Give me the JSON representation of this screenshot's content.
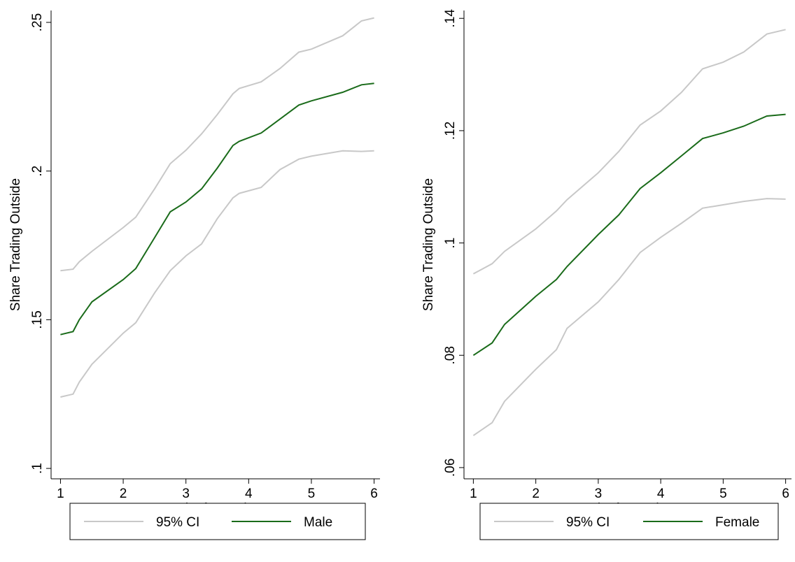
{
  "chart_data": [
    {
      "type": "line",
      "ylabel": "Share Trading Outside",
      "xlabel": "Week of experiment",
      "x": [
        1,
        1.2,
        1.3,
        1.5,
        2,
        2.2,
        2.5,
        2.75,
        3,
        3.25,
        3.5,
        3.75,
        3.85,
        4.2,
        4.5,
        4.8,
        5,
        5.5,
        5.8,
        6
      ],
      "series": [
        {
          "name": "95% CI",
          "color": "#c8c8c8",
          "upper": [
            0.1665,
            0.167,
            0.1695,
            0.173,
            0.181,
            0.1845,
            0.194,
            0.2025,
            0.207,
            0.2125,
            0.219,
            0.226,
            0.2278,
            0.23,
            0.2345,
            0.24,
            0.241,
            0.2455,
            0.2505,
            0.2515
          ],
          "lower": [
            0.124,
            0.125,
            0.129,
            0.135,
            0.1455,
            0.149,
            0.159,
            0.1665,
            0.1715,
            0.1755,
            0.184,
            0.191,
            0.1925,
            0.1945,
            0.2005,
            0.204,
            0.205,
            0.2068,
            0.2066,
            0.2068
          ]
        },
        {
          "name": "Male",
          "color": "#1a6b1a",
          "values": [
            0.145,
            0.146,
            0.15,
            0.156,
            0.1635,
            0.1672,
            0.1776,
            0.1863,
            0.1896,
            0.194,
            0.201,
            0.2086,
            0.21,
            0.2128,
            0.2175,
            0.2222,
            0.2236,
            0.2265,
            0.229,
            0.2295
          ]
        }
      ],
      "xlim": [
        0.85,
        6.15
      ],
      "xticks": [
        1,
        2,
        3,
        4,
        5,
        6
      ],
      "ylim": [
        0.0965,
        0.254
      ],
      "yticks": [
        {
          "value": 0.1,
          "label": ".1"
        },
        {
          "value": 0.15,
          "label": ".15"
        },
        {
          "value": 0.2,
          "label": ".2"
        },
        {
          "value": 0.25,
          "label": ".25"
        }
      ],
      "legend": "bottom"
    },
    {
      "type": "line",
      "ylabel": "Share Trading Outside",
      "xlabel": "Week of experiment",
      "x": [
        1,
        1.3,
        1.5,
        2,
        2.33,
        2.5,
        3,
        3.33,
        3.67,
        4,
        4.33,
        4.67,
        5,
        5.33,
        5.7,
        6
      ],
      "series": [
        {
          "name": "95% CI",
          "color": "#c8c8c8",
          "upper": [
            0.0945,
            0.0963,
            0.0985,
            0.1025,
            0.1057,
            0.1077,
            0.1125,
            0.1163,
            0.121,
            0.1235,
            0.1268,
            0.131,
            0.1322,
            0.134,
            0.1372,
            0.138
          ],
          "lower": [
            0.0657,
            0.068,
            0.0718,
            0.0775,
            0.081,
            0.0848,
            0.0895,
            0.0935,
            0.0983,
            0.101,
            0.1035,
            0.1062,
            0.1068,
            0.1074,
            0.1079,
            0.1078
          ]
        },
        {
          "name": "Female",
          "color": "#1a6b1a",
          "values": [
            0.08,
            0.0822,
            0.0855,
            0.0905,
            0.0935,
            0.0958,
            0.1015,
            0.105,
            0.1097,
            0.1125,
            0.1155,
            0.1186,
            0.1196,
            0.1208,
            0.1226,
            0.1229
          ]
        }
      ],
      "xlim": [
        0.85,
        6.15
      ],
      "xticks": [
        1,
        2,
        3,
        4,
        5,
        6
      ],
      "ylim": [
        0.058,
        0.1414
      ],
      "yticks": [
        {
          "value": 0.06,
          "label": ".06"
        },
        {
          "value": 0.08,
          "label": ".08"
        },
        {
          "value": 0.1,
          "label": ".1"
        },
        {
          "value": 0.12,
          "label": ".12"
        },
        {
          "value": 0.14,
          "label": ".14"
        }
      ],
      "legend": "bottom"
    }
  ]
}
